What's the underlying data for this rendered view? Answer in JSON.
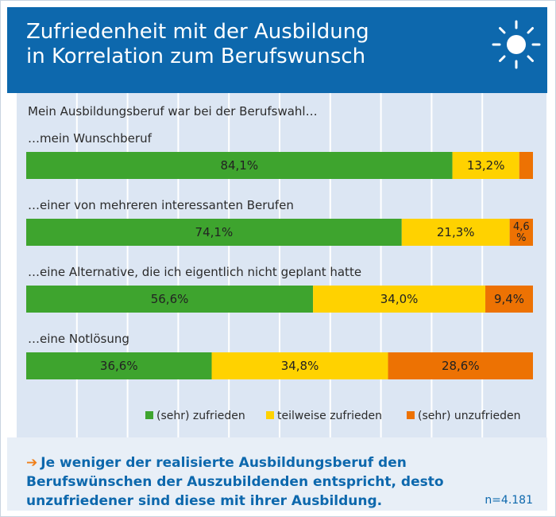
{
  "header": {
    "title_line1": "Zufriedenheit mit der Ausbildung",
    "title_line2": "in Korrelation zum Berufswunsch",
    "icon": "sun-icon"
  },
  "intro": "Mein Ausbildungsberuf war bei der Berufswahl…",
  "chart_data": {
    "type": "bar",
    "orientation": "horizontal",
    "stacked": true,
    "categories": [
      "…mein Wunschberuf",
      "…einer von mehreren interessanten Berufen",
      "…eine Alternative, die ich eigentlich nicht geplant hatte",
      "…eine Notlösung"
    ],
    "series": [
      {
        "name": "(sehr) zufrieden",
        "color": "#3ea42e",
        "values": [
          84.1,
          74.1,
          56.6,
          36.6
        ],
        "labels": [
          "84,1%",
          "74,1%",
          "56,6%",
          "36,6%"
        ]
      },
      {
        "name": "teilweise zufrieden",
        "color": "#ffd200",
        "values": [
          13.2,
          21.3,
          34.0,
          34.8
        ],
        "labels": [
          "13,2%",
          "21,3%",
          "34,0%",
          "34,8%"
        ]
      },
      {
        "name": "(sehr) unzufrieden",
        "color": "#ed7203",
        "values": [
          2.7,
          4.6,
          9.4,
          28.6
        ],
        "labels": [
          "",
          "4,6 %",
          "9,4%",
          "28,6%"
        ]
      }
    ],
    "xlim": [
      0,
      100
    ],
    "grid": true,
    "legend_position": "bottom-right"
  },
  "footer": {
    "arrow": "➔",
    "conclusion": "Je weniger der realisierte Ausbildungsberuf den Berufswünschen der Auszubildenden entspricht, desto unzufriedener sind diese mit ihrer Ausbildung.",
    "n": "n=4.181"
  },
  "colors": {
    "header": "#0d68ad",
    "chart_bg": "#dce6f3",
    "footer_bg": "#e8eff7",
    "accent": "#f07f1a"
  }
}
